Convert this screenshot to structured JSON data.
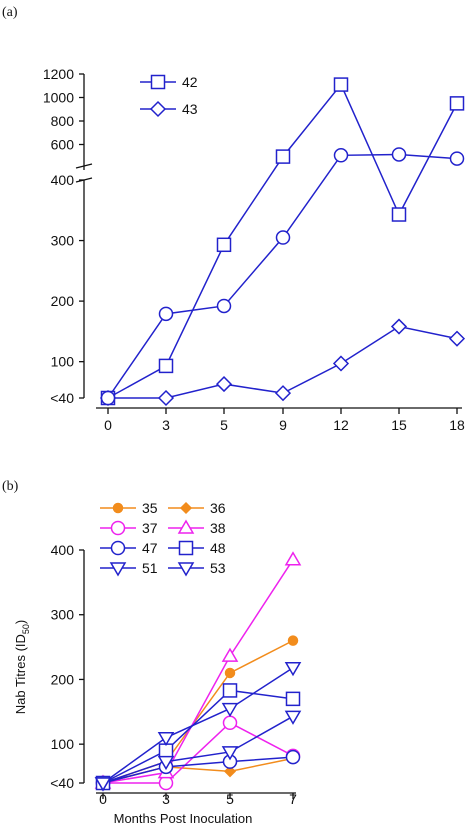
{
  "chart_data": [
    {
      "panel_label": "(a)",
      "type": "line",
      "x_ticks": [
        "0",
        "3",
        "5",
        "9",
        "12",
        "15",
        "18"
      ],
      "y_ticks_lower": [
        "<40",
        "100",
        "200",
        "300",
        "400"
      ],
      "y_ticks_upper": [
        "600",
        "800",
        "1000",
        "1200"
      ],
      "ylim_lower": [
        40,
        400
      ],
      "ylim_upper": [
        400,
        1200
      ],
      "axis_break": true,
      "legend_position": "top-left",
      "series": [
        {
          "name": "42",
          "marker": "square",
          "color": "#2222cc",
          "legend": true,
          "points": [
            [
              0,
              40
            ],
            [
              3,
              93
            ],
            [
              5,
              293
            ],
            [
              9,
              497
            ],
            [
              12,
              1110
            ],
            [
              15,
              343
            ],
            [
              18,
              950
            ]
          ]
        },
        {
          "name": "43",
          "marker": "diamond",
          "color": "#2222cc",
          "legend": true,
          "points": [
            [
              0,
              40
            ],
            [
              3,
              40
            ],
            [
              5,
              63
            ],
            [
              9,
              48
            ],
            [
              12,
              97
            ],
            [
              15,
              158
            ],
            [
              18,
              138
            ]
          ]
        },
        {
          "name": "",
          "marker": "circle",
          "color": "#2222cc",
          "legend": false,
          "points": [
            [
              0,
              40
            ],
            [
              3,
              179
            ],
            [
              5,
              192
            ],
            [
              9,
              305
            ],
            [
              12,
              508
            ],
            [
              15,
              515
            ],
            [
              18,
              480
            ]
          ]
        }
      ]
    },
    {
      "panel_label": "(b)",
      "type": "line",
      "xlabel": "Months Post Inoculation",
      "ylabel": "Nab Titres (ID",
      "ylabel_sub": "50",
      "ylabel_end": ")",
      "x_ticks": [
        "0",
        "3",
        "5",
        "7"
      ],
      "y_ticks": [
        "<40",
        "100",
        "200",
        "300",
        "400"
      ],
      "ylim": [
        40,
        400
      ],
      "legend_position": "top-left",
      "series": [
        {
          "name": "35",
          "marker": "circle-filled",
          "color": "#f28c1c",
          "points": [
            [
              0,
              40
            ],
            [
              3,
              73
            ],
            [
              5,
              210
            ],
            [
              7,
              260
            ]
          ]
        },
        {
          "name": "36",
          "marker": "diamond-filled",
          "color": "#f28c1c",
          "points": [
            [
              0,
              40
            ],
            [
              3,
              65
            ],
            [
              5,
              58
            ],
            [
              7,
              78
            ]
          ]
        },
        {
          "name": "37",
          "marker": "circle",
          "color": "#ee22ee",
          "points": [
            [
              0,
              40
            ],
            [
              3,
              40
            ],
            [
              5,
              133
            ],
            [
              7,
              82
            ]
          ]
        },
        {
          "name": "38",
          "marker": "triangle-up",
          "color": "#ee22ee",
          "points": [
            [
              0,
              40
            ],
            [
              3,
              56
            ],
            [
              5,
              236
            ],
            [
              7,
              385
            ]
          ]
        },
        {
          "name": "47",
          "marker": "circle",
          "color": "#2222cc",
          "points": [
            [
              0,
              40
            ],
            [
              3,
              65
            ],
            [
              5,
              73
            ],
            [
              7,
              80
            ]
          ]
        },
        {
          "name": "48",
          "marker": "square",
          "color": "#2222cc",
          "points": [
            [
              0,
              40
            ],
            [
              3,
              90
            ],
            [
              5,
              183
            ],
            [
              7,
              170
            ]
          ]
        },
        {
          "name": "51",
          "marker": "triangle-down",
          "color": "#2222cc",
          "points": [
            [
              0,
              40
            ],
            [
              3,
              73
            ],
            [
              5,
              88
            ],
            [
              7,
              143
            ]
          ]
        },
        {
          "name": "53",
          "marker": "triangle-down",
          "color": "#2222cc",
          "points": [
            [
              0,
              40
            ],
            [
              3,
              110
            ],
            [
              5,
              155
            ],
            [
              7,
              218
            ]
          ]
        }
      ]
    }
  ]
}
